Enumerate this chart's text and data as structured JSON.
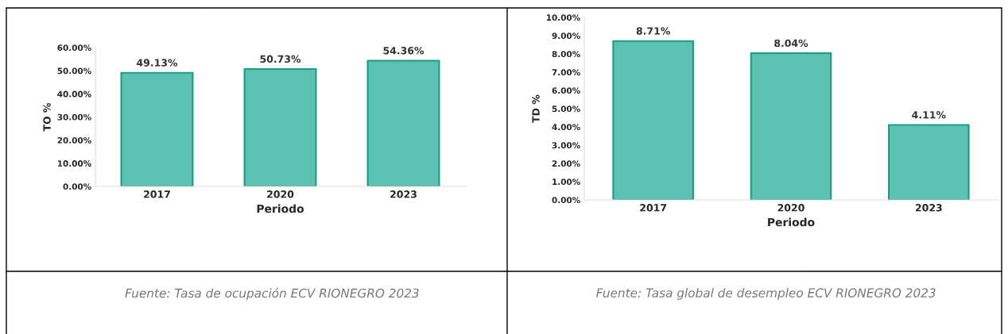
{
  "chart_data": [
    {
      "type": "bar",
      "xlabel": "Periodo",
      "ylabel": "TO %",
      "categories": [
        "2017",
        "2020",
        "2023"
      ],
      "series": [
        {
          "color": "#5cc1b0",
          "values": [
            49.13,
            50.73,
            54.36
          ],
          "value_labels": [
            "49.13%",
            "50.73%",
            "54.36%"
          ]
        }
      ],
      "ylim": [
        0,
        60
      ],
      "yticks": [
        {
          "value": 0,
          "label": "0.00%"
        },
        {
          "value": 10,
          "label": "10.00%"
        },
        {
          "value": 20,
          "label": "20.00%"
        },
        {
          "value": 30,
          "label": "30.00%"
        },
        {
          "value": 40,
          "label": "40.00%"
        },
        {
          "value": 50,
          "label": "50.00%"
        },
        {
          "value": 60,
          "label": "60.00%"
        }
      ],
      "grid": false,
      "legend": false,
      "annotations": [
        "Fuente: Tasa de ocupación ECV RIONEGRO 2023"
      ]
    },
    {
      "type": "bar",
      "xlabel": "Periodo",
      "ylabel": "TD %",
      "categories": [
        "2017",
        "2020",
        "2023"
      ],
      "series": [
        {
          "color": "#5cc1b0",
          "values": [
            8.71,
            8.04,
            4.11
          ],
          "value_labels": [
            "8.71%",
            "8.04%",
            "4.11%"
          ]
        }
      ],
      "ylim": [
        0,
        10
      ],
      "yticks": [
        {
          "value": 0,
          "label": "0.00%"
        },
        {
          "value": 1,
          "label": "1.00%"
        },
        {
          "value": 2,
          "label": "2.00%"
        },
        {
          "value": 3,
          "label": "3.00%"
        },
        {
          "value": 4,
          "label": "4.00%"
        },
        {
          "value": 5,
          "label": "5.00%"
        },
        {
          "value": 6,
          "label": "6.00%"
        },
        {
          "value": 7,
          "label": "7.00%"
        },
        {
          "value": 8,
          "label": "8.00%"
        },
        {
          "value": 9,
          "label": "9.00%"
        },
        {
          "value": 10,
          "label": "10.00%"
        }
      ],
      "grid": false,
      "legend": false,
      "annotations": [
        "Fuente: Tasa global de desempleo ECV RIONEGRO 2023"
      ]
    }
  ]
}
